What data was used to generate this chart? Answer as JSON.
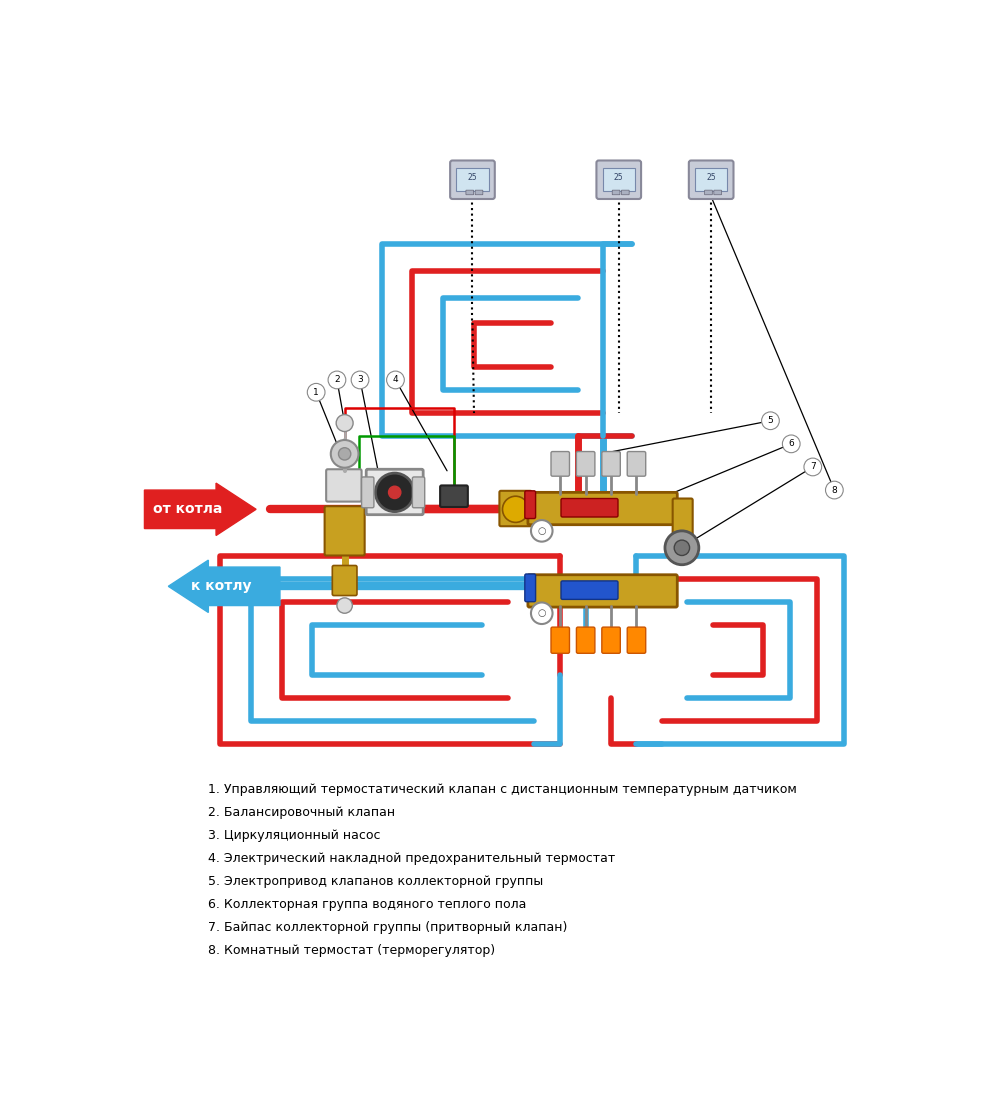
{
  "background_color": "#ffffff",
  "legend_items": [
    "1. Управляющий термостатический клапан с дистанционным температурным датчиком",
    "2. Балансировочный клапан",
    "3. Циркуляционный насос",
    "4. Электрический накладной предохранительный термостат",
    "5. Электропривод клапанов коллекторной группы",
    "6. Коллекторная группа водяного теплого пола",
    "7. Байпас коллекторной группы (притворный клапан)",
    "8. Комнатный термостат (терморегулятор)"
  ],
  "hot_color": "#e02020",
  "cold_color": "#3aabdf",
  "pipe_lw": 5,
  "arrow_hot_label": "от котла",
  "arrow_cold_label": "к котлу"
}
